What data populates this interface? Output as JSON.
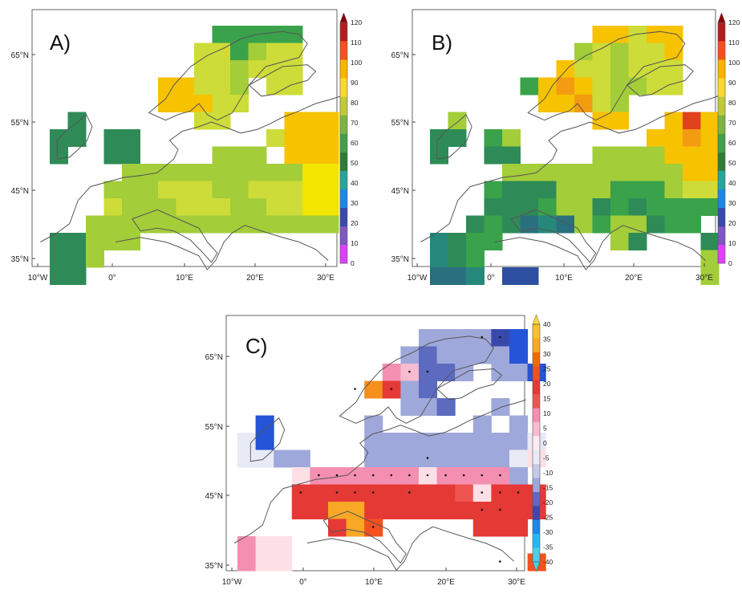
{
  "panels": [
    {
      "id": "A",
      "letter": "A)",
      "x_ticks": [
        "10°W",
        "0°",
        "10°E",
        "20°E",
        "30°E"
      ],
      "y_ticks": [
        "35°N",
        "45°N",
        "55°N",
        "65°N"
      ],
      "colorbar": {
        "ticks": [
          "0",
          "10",
          "20",
          "30",
          "40",
          "50",
          "60",
          "70",
          "80",
          "90",
          "100",
          "110",
          "120"
        ],
        "colors": [
          "#e040fb",
          "#7e57c2",
          "#3949ab",
          "#1e88e5",
          "#26a69a",
          "#2e7d32",
          "#43a047",
          "#7cb342",
          "#c0ca33",
          "#fdd835",
          "#ffb300",
          "#f4511e",
          "#b71c1c"
        ]
      }
    },
    {
      "id": "B",
      "letter": "B)",
      "x_ticks": [
        "10°W",
        "0°",
        "10°E",
        "20°E",
        "30°E"
      ],
      "y_ticks": [
        "35°N",
        "45°N",
        "55°N",
        "65°N"
      ],
      "colorbar": {
        "ticks": [
          "0",
          "10",
          "20",
          "30",
          "40",
          "50",
          "60",
          "70",
          "80",
          "90",
          "100",
          "110",
          "120"
        ],
        "colors": [
          "#e040fb",
          "#7e57c2",
          "#3949ab",
          "#1e88e5",
          "#26a69a",
          "#2e7d32",
          "#43a047",
          "#7cb342",
          "#c0ca33",
          "#fdd835",
          "#ffb300",
          "#f4511e",
          "#b71c1c"
        ]
      }
    },
    {
      "id": "C",
      "letter": "C)",
      "x_ticks": [
        "10°W",
        "0°",
        "10°E",
        "20°E",
        "30°E"
      ],
      "y_ticks": [
        "35°N",
        "45°N",
        "55°N",
        "65°N"
      ],
      "colorbar": {
        "ticks": [
          "40",
          "35",
          "30",
          "25",
          "20",
          "15",
          "10",
          "5",
          "0",
          "-5",
          "-10",
          "-15",
          "-20",
          "-25",
          "-30",
          "-35",
          "-40"
        ],
        "colors": [
          "#fbc02d",
          "#f9a825",
          "#ef6c00",
          "#f4511e",
          "#e53935",
          "#ef5350",
          "#f48fb1",
          "#f8bbd0",
          "#ffebee",
          "#e8eaf6",
          "#c5cae9",
          "#9fa8da",
          "#5c6bc0",
          "#3949ab",
          "#1e88e5",
          "#29b6f6",
          "#4dd0e1"
        ]
      }
    }
  ]
}
